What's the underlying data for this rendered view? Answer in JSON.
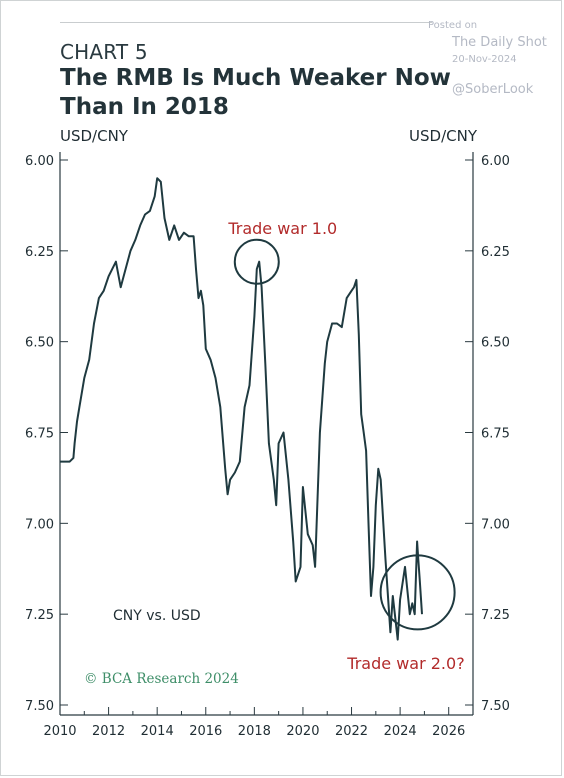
{
  "header": {
    "kicker": "CHART 5",
    "title": "The RMB Is Much Weaker Now Than In 2018"
  },
  "watermark": {
    "posted": "Posted on",
    "source": "The Daily Shot",
    "date": "20-Nov-2024",
    "handle": "@SoberLook"
  },
  "colors": {
    "line": "#1f3a40",
    "annotation": "#b22b2b",
    "credit": "#3e8e68",
    "axis": "#2a3a40"
  },
  "chart_data": {
    "type": "line",
    "title": "The RMB Is Much Weaker Now Than In 2018",
    "ylabel_left": "USD/CNY",
    "ylabel_right": "USD/CNY",
    "xlabel": "",
    "xlim": [
      2010,
      2027
    ],
    "ylim": [
      6.0,
      7.5
    ],
    "y_inverted": true,
    "x_ticks": [
      2010,
      2012,
      2014,
      2016,
      2018,
      2020,
      2022,
      2024,
      2026
    ],
    "y_ticks": [
      "6.00",
      "6.25",
      "6.50",
      "6.75",
      "7.00",
      "7.25",
      "7.50"
    ],
    "grid": false,
    "series": [
      {
        "name": "CNY vs. USD",
        "x": [
          2010.0,
          2010.4,
          2010.55,
          2010.6,
          2010.7,
          2010.8,
          2011.0,
          2011.2,
          2011.4,
          2011.6,
          2011.8,
          2012.0,
          2012.3,
          2012.5,
          2012.7,
          2012.9,
          2013.1,
          2013.3,
          2013.5,
          2013.7,
          2013.9,
          2014.0,
          2014.15,
          2014.3,
          2014.5,
          2014.7,
          2014.9,
          2015.1,
          2015.3,
          2015.5,
          2015.6,
          2015.7,
          2015.8,
          2015.9,
          2016.0,
          2016.2,
          2016.4,
          2016.6,
          2016.8,
          2016.9,
          2017.0,
          2017.2,
          2017.4,
          2017.6,
          2017.8,
          2018.0,
          2018.1,
          2018.2,
          2018.3,
          2018.45,
          2018.6,
          2018.8,
          2018.9,
          2019.0,
          2019.2,
          2019.4,
          2019.6,
          2019.7,
          2019.9,
          2020.0,
          2020.2,
          2020.4,
          2020.5,
          2020.7,
          2020.9,
          2021.0,
          2021.2,
          2021.4,
          2021.6,
          2021.8,
          2022.0,
          2022.1,
          2022.2,
          2022.3,
          2022.4,
          2022.5,
          2022.6,
          2022.7,
          2022.8,
          2022.9,
          2023.0,
          2023.1,
          2023.2,
          2023.4,
          2023.6,
          2023.7,
          2023.9,
          2024.0,
          2024.2,
          2024.4,
          2024.5,
          2024.6,
          2024.7,
          2024.75,
          2024.8,
          2024.85,
          2024.9
        ],
        "y": [
          6.83,
          6.83,
          6.82,
          6.78,
          6.72,
          6.68,
          6.6,
          6.55,
          6.45,
          6.38,
          6.36,
          6.32,
          6.28,
          6.35,
          6.3,
          6.25,
          6.22,
          6.18,
          6.15,
          6.14,
          6.1,
          6.05,
          6.06,
          6.16,
          6.22,
          6.18,
          6.22,
          6.2,
          6.21,
          6.21,
          6.3,
          6.38,
          6.36,
          6.4,
          6.52,
          6.55,
          6.6,
          6.68,
          6.85,
          6.92,
          6.88,
          6.86,
          6.83,
          6.68,
          6.62,
          6.43,
          6.3,
          6.28,
          6.35,
          6.56,
          6.78,
          6.88,
          6.95,
          6.78,
          6.75,
          6.88,
          7.05,
          7.16,
          7.12,
          6.9,
          7.03,
          7.06,
          7.12,
          6.75,
          6.56,
          6.5,
          6.45,
          6.45,
          6.46,
          6.38,
          6.36,
          6.35,
          6.33,
          6.48,
          6.7,
          6.75,
          6.8,
          7.0,
          7.2,
          7.12,
          6.95,
          6.85,
          6.88,
          7.1,
          7.3,
          7.2,
          7.32,
          7.21,
          7.12,
          7.25,
          7.22,
          7.25,
          7.05,
          7.1,
          7.15,
          7.2,
          7.25
        ]
      }
    ],
    "annotations": [
      {
        "text": "Trade war 1.0",
        "x": 2018.3,
        "y": 6.28
      },
      {
        "text": "Trade war 2.0?",
        "x": 2024.4,
        "y": 7.2
      }
    ],
    "series_label": "CNY vs. USD",
    "credit": "© BCA Research 2024"
  }
}
